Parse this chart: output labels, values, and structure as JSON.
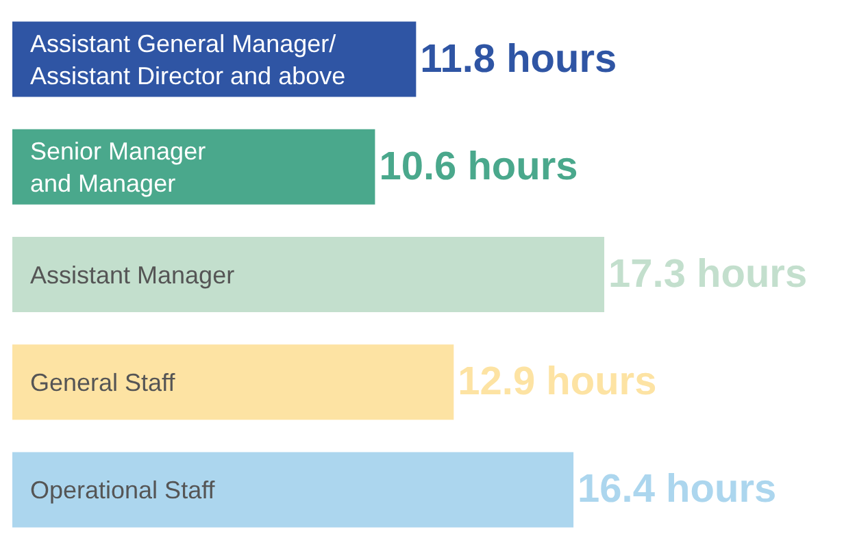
{
  "chart_data": {
    "type": "bar",
    "orientation": "horizontal",
    "categories": [
      "Assistant General Manager/\nAssistant Director and above",
      "Senior Manager\nand Manager",
      "Assistant Manager",
      "General Staff",
      "Operational Staff"
    ],
    "values": [
      11.8,
      10.6,
      17.3,
      12.9,
      16.4
    ],
    "colors": [
      "#2f55a4",
      "#4aa88c",
      "#c3dfcd",
      "#fde3a3",
      "#acd6ee"
    ],
    "value_labels": [
      "11.8 hours",
      "10.6 hours",
      "17.3 hours",
      "12.9 hours",
      "16.4 hours"
    ]
  }
}
